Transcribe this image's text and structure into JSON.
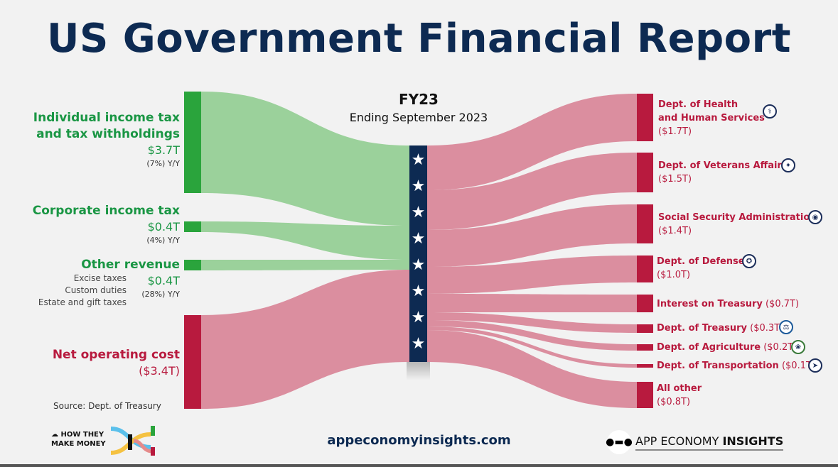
{
  "title": "US Government Financial Report",
  "period": {
    "fy": "FY23",
    "ending": "Ending September 2023"
  },
  "sources": [
    {
      "name_line1": "Individual income tax",
      "name_line2": "and tax withholdings",
      "value": "$3.7T",
      "yoy": "(7%) Y/Y"
    },
    {
      "name": "Corporate income tax",
      "value": "$0.4T",
      "yoy": "(4%) Y/Y"
    },
    {
      "name": "Other revenue",
      "items": [
        "Excise taxes",
        "Custom duties",
        "Estate and gift taxes"
      ],
      "value": "$0.4T",
      "yoy": "(28%) Y/Y"
    },
    {
      "name": "Net operating cost",
      "value": "($3.4T)"
    }
  ],
  "destinations": [
    {
      "name_line1": "Dept. of Health",
      "name_line2": "and Human Services",
      "value": "($1.7T)",
      "icon": "hhs-seal-icon"
    },
    {
      "name": "Dept. of Veterans Affairs",
      "value": "($1.5T)",
      "icon": "va-seal-icon"
    },
    {
      "name": "Social Security Administration",
      "value": "($1.4T)",
      "icon": "ssa-seal-icon"
    },
    {
      "name": "Dept. of Defense",
      "value": "($1.0T)",
      "icon": "dod-seal-icon"
    },
    {
      "name": "Interest on Treasury",
      "value": "($0.7T)"
    },
    {
      "name": "Dept. of Treasury",
      "value": "($0.3T)",
      "icon": "treasury-seal-icon"
    },
    {
      "name": "Dept. of Agriculture",
      "value": "($0.2T)",
      "icon": "usda-seal-icon"
    },
    {
      "name": "Dept. of Transportation",
      "value": "($0.1T)",
      "icon": "dot-seal-icon"
    },
    {
      "name": "All other",
      "value": "($0.8T)"
    }
  ],
  "colors": {
    "revenue": "#2aa43c",
    "revenue_flow": "#9bd19b",
    "cost": "#b81a3e",
    "cost_flow": "#db8e9f",
    "navy": "#0d2a52"
  },
  "footer": {
    "source": "Source: Dept. of Treasury",
    "how_line1": "HOW THEY",
    "how_line2": "MAKE MONEY",
    "site": "appeconomyinsights.com",
    "brand_regular": "APP ECONOMY ",
    "brand_bold": "INSIGHTS"
  }
}
